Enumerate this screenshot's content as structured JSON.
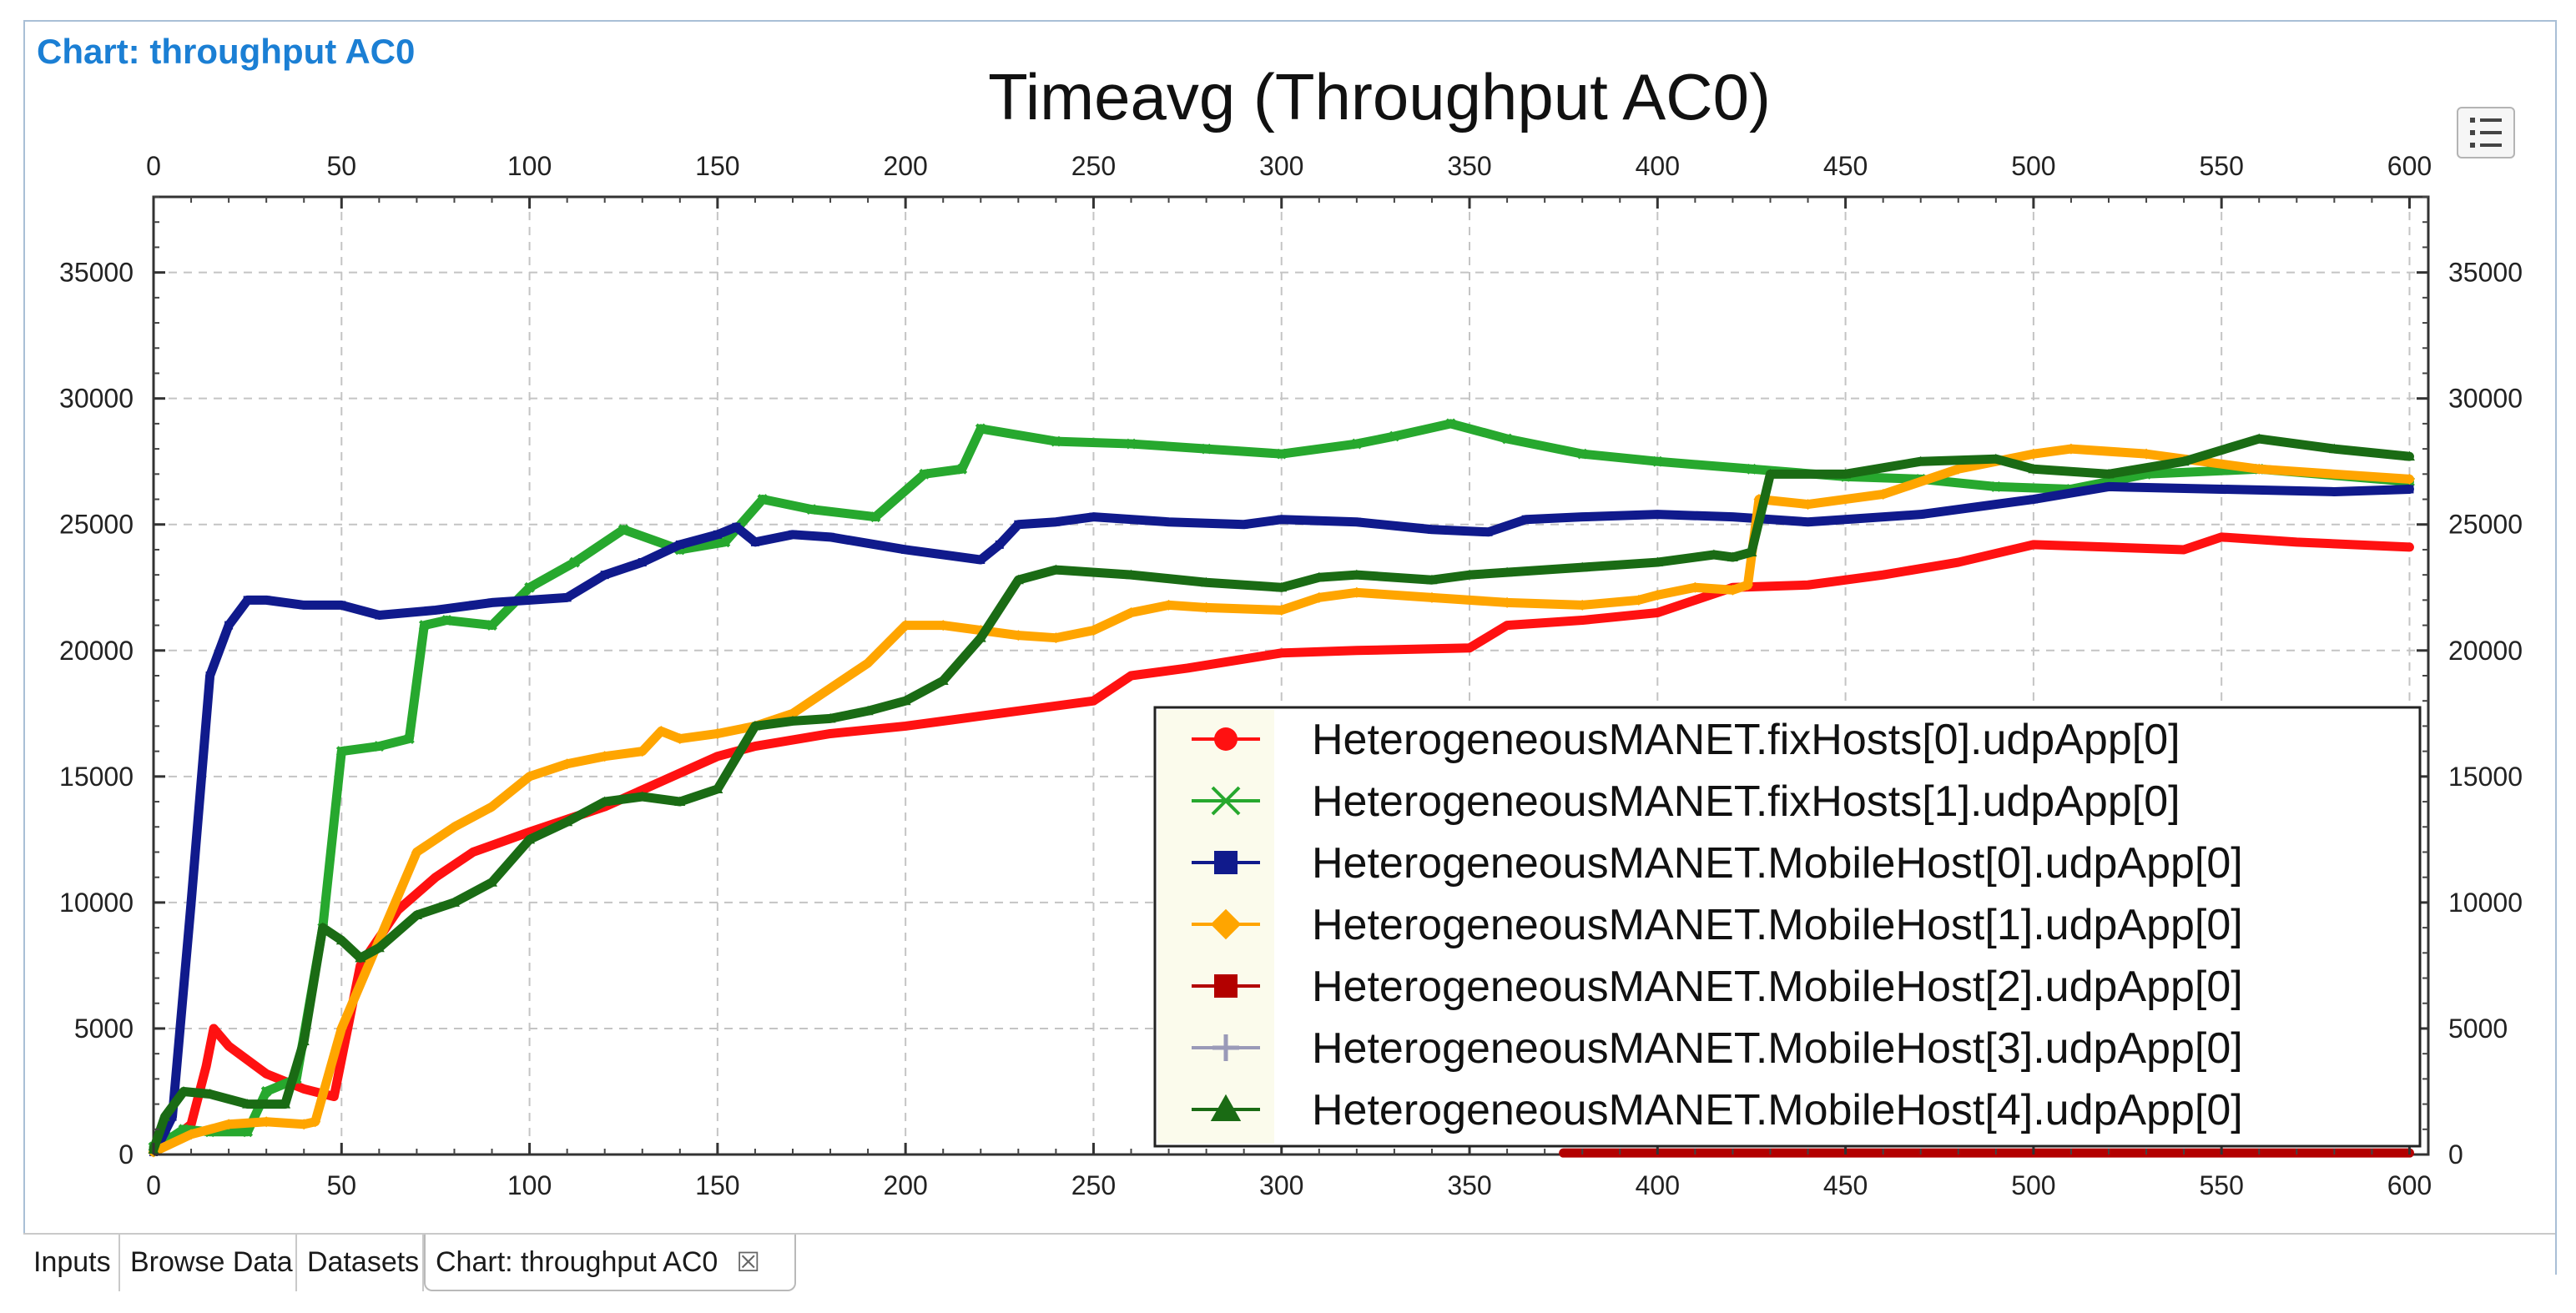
{
  "editor_title": "Chart: throughput AC0",
  "tabs": [
    {
      "label": "Inputs"
    },
    {
      "label": "Browse Data"
    },
    {
      "label": "Datasets"
    },
    {
      "label": "Chart: throughput AC0",
      "close": "☒"
    }
  ],
  "colors": {
    "red": "#ff1111",
    "green": "#27a82e",
    "navy": "#101a8c",
    "orange": "#ffa500",
    "darkred": "#b30000",
    "gray": "#9a9ab8",
    "darkgreen": "#1a6b14"
  },
  "chart_data": {
    "type": "line",
    "title": "Timeavg (Throughput AC0)",
    "xlabel": "",
    "ylabel": "",
    "xlim": [
      0,
      605
    ],
    "ylim": [
      0,
      38000
    ],
    "x_ticks": [
      0,
      50,
      100,
      150,
      200,
      250,
      300,
      350,
      400,
      450,
      500,
      550,
      600
    ],
    "y_ticks": [
      0,
      5000,
      10000,
      15000,
      20000,
      25000,
      30000,
      35000
    ],
    "grid": true,
    "legend_position": "bottom-right",
    "series": [
      {
        "name": "HeterogeneousMANET.fixHosts[0].udpApp[0]",
        "color": "red",
        "marker": "circle",
        "x": [
          0,
          5,
          10,
          14,
          16,
          20,
          30,
          40,
          48,
          55,
          65,
          75,
          85,
          100,
          120,
          135,
          150,
          160,
          180,
          200,
          220,
          250,
          260,
          275,
          300,
          320,
          350,
          360,
          380,
          400,
          420,
          440,
          460,
          480,
          500,
          520,
          540,
          550,
          570,
          600
        ],
        "y": [
          200,
          600,
          1200,
          3500,
          5000,
          4300,
          3200,
          2600,
          2300,
          7500,
          9700,
          11000,
          12000,
          12800,
          13800,
          14800,
          15800,
          16200,
          16700,
          17000,
          17400,
          18000,
          19000,
          19300,
          19900,
          20000,
          20100,
          21000,
          21200,
          21500,
          22500,
          22600,
          23000,
          23500,
          24200,
          24100,
          24000,
          24500,
          24300,
          24100
        ]
      },
      {
        "name": "HeterogeneousMANET.fixHosts[1].udpApp[0]",
        "color": "green",
        "marker": "x",
        "x": [
          0,
          5,
          8,
          15,
          25,
          30,
          38,
          45,
          50,
          60,
          68,
          72,
          78,
          90,
          100,
          112,
          125,
          140,
          152,
          162,
          175,
          192,
          205,
          215,
          220,
          240,
          260,
          280,
          300,
          320,
          330,
          345,
          360,
          380,
          400,
          425,
          450,
          470,
          490,
          510,
          530,
          560,
          600
        ],
        "y": [
          300,
          700,
          1000,
          900,
          900,
          2500,
          3000,
          9000,
          16000,
          16200,
          16500,
          21000,
          21200,
          21000,
          22500,
          23500,
          24800,
          24000,
          24300,
          26000,
          25600,
          25300,
          27000,
          27200,
          28800,
          28300,
          28200,
          28000,
          27800,
          28200,
          28500,
          29000,
          28400,
          27800,
          27500,
          27200,
          26900,
          26800,
          26500,
          26400,
          27000,
          27200,
          26700
        ]
      },
      {
        "name": "HeterogeneousMANET.MobileHost[0].udpApp[0]",
        "color": "navy",
        "marker": "square",
        "x": [
          0,
          2,
          5,
          10,
          15,
          20,
          25,
          30,
          40,
          50,
          60,
          75,
          85,
          90,
          100,
          110,
          120,
          130,
          140,
          150,
          155,
          160,
          170,
          180,
          200,
          220,
          225,
          230,
          240,
          250,
          270,
          290,
          300,
          320,
          340,
          355,
          365,
          380,
          400,
          420,
          440,
          470,
          500,
          520,
          550,
          580,
          600
        ],
        "y": [
          100,
          600,
          1500,
          10000,
          19000,
          21000,
          22000,
          22000,
          21800,
          21800,
          21400,
          21600,
          21800,
          21900,
          22000,
          22100,
          23000,
          23500,
          24200,
          24600,
          24900,
          24300,
          24600,
          24500,
          24000,
          23600,
          24200,
          25000,
          25100,
          25300,
          25100,
          25000,
          25200,
          25100,
          24800,
          24700,
          25200,
          25300,
          25400,
          25300,
          25100,
          25400,
          26000,
          26500,
          26400,
          26300,
          26400
        ]
      },
      {
        "name": "HeterogeneousMANET.MobileHost[1].udpApp[0]",
        "color": "orange",
        "marker": "diamond",
        "x": [
          0,
          10,
          20,
          30,
          40,
          43,
          50,
          60,
          70,
          80,
          90,
          100,
          110,
          120,
          130,
          135,
          140,
          150,
          160,
          170,
          180,
          190,
          200,
          210,
          220,
          230,
          240,
          250,
          260,
          270,
          280,
          300,
          310,
          320,
          340,
          360,
          380,
          395,
          400,
          410,
          420,
          424,
          427,
          440,
          460,
          480,
          500,
          510,
          530,
          560,
          600
        ],
        "y": [
          100,
          800,
          1200,
          1300,
          1200,
          1300,
          5000,
          8500,
          12000,
          13000,
          13800,
          15000,
          15500,
          15800,
          16000,
          16800,
          16500,
          16700,
          17000,
          17500,
          18500,
          19500,
          21000,
          21000,
          20800,
          20600,
          20500,
          20800,
          21500,
          21800,
          21700,
          21600,
          22100,
          22300,
          22100,
          21900,
          21800,
          22000,
          22200,
          22500,
          22400,
          22600,
          26000,
          25800,
          26200,
          27200,
          27800,
          28000,
          27800,
          27200,
          26800
        ]
      },
      {
        "name": "HeterogeneousMANET.MobileHost[2].udpApp[0]",
        "color": "darkred",
        "marker": "square",
        "x": [
          375,
          600
        ],
        "y": [
          60,
          60
        ]
      },
      {
        "name": "HeterogeneousMANET.MobileHost[3].udpApp[0]",
        "color": "gray",
        "marker": "plus",
        "x": [],
        "y": []
      },
      {
        "name": "HeterogeneousMANET.MobileHost[4].udpApp[0]",
        "color": "darkgreen",
        "marker": "triangle",
        "x": [
          0,
          3,
          8,
          15,
          25,
          35,
          40,
          45,
          50,
          55,
          60,
          70,
          80,
          90,
          100,
          110,
          120,
          130,
          140,
          150,
          160,
          170,
          180,
          190,
          200,
          210,
          220,
          230,
          240,
          260,
          280,
          300,
          310,
          320,
          340,
          350,
          360,
          380,
          400,
          415,
          420,
          425,
          430,
          450,
          470,
          490,
          500,
          520,
          540,
          560,
          580,
          600
        ],
        "y": [
          200,
          1500,
          2500,
          2400,
          2000,
          2000,
          4500,
          9000,
          8500,
          7800,
          8200,
          9500,
          10000,
          10800,
          12500,
          13200,
          14000,
          14200,
          14000,
          14500,
          17000,
          17200,
          17300,
          17600,
          18000,
          18800,
          20500,
          22800,
          23200,
          23000,
          22700,
          22500,
          22900,
          23000,
          22800,
          23000,
          23100,
          23300,
          23500,
          23800,
          23700,
          23900,
          27000,
          27000,
          27500,
          27600,
          27200,
          27000,
          27500,
          28400,
          28000,
          27700
        ]
      }
    ]
  }
}
